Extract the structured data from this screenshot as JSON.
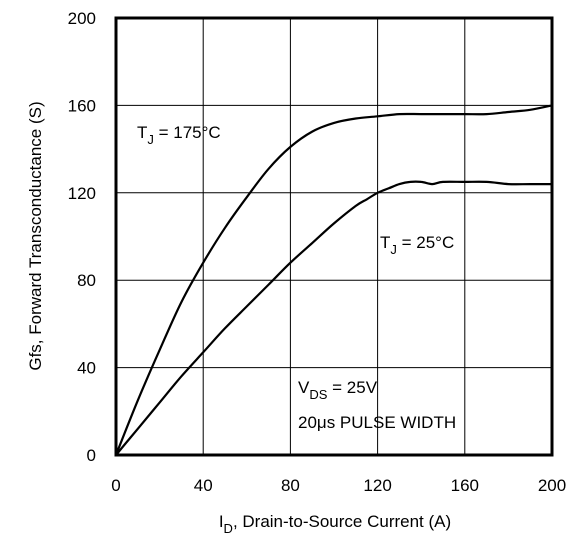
{
  "chart_data": {
    "type": "line",
    "xlabel": {
      "main": "I",
      "sub": "D",
      "rest": ", Drain-to-Source Current (A)"
    },
    "ylabel": "Gfs, Forward Transconductance (S)",
    "xlim": [
      0,
      200
    ],
    "ylim": [
      0,
      200
    ],
    "xticks": [
      "0",
      "40",
      "80",
      "120",
      "160",
      "200"
    ],
    "yticks": [
      "0",
      "40",
      "80",
      "120",
      "160",
      "200"
    ],
    "grid": true,
    "series": [
      {
        "label": {
          "main": "T",
          "sub": "J",
          "rest": " = 175°C"
        },
        "x": [
          0,
          10,
          20,
          30,
          40,
          50,
          60,
          70,
          80,
          90,
          100,
          110,
          120,
          130,
          140,
          150,
          160,
          170,
          180,
          190,
          200
        ],
        "y": [
          0,
          25,
          48,
          70,
          88,
          104,
          118,
          131,
          141,
          148,
          152,
          154,
          155,
          156,
          156,
          156,
          156,
          156,
          157,
          158,
          160
        ]
      },
      {
        "label": {
          "main": "T",
          "sub": "J",
          "rest": " = 25°C"
        },
        "x": [
          0,
          10,
          20,
          30,
          40,
          50,
          60,
          70,
          80,
          90,
          100,
          110,
          115,
          120,
          125,
          130,
          135,
          140,
          145,
          150,
          160,
          170,
          180,
          190,
          200
        ],
        "y": [
          0,
          12,
          24,
          36,
          47,
          58,
          68,
          78,
          88,
          97,
          106,
          114,
          117,
          120,
          122,
          124,
          125,
          125,
          124,
          125,
          125,
          125,
          124,
          124,
          124
        ]
      }
    ],
    "annotations": [
      {
        "main": "V",
        "sub": "DS",
        "rest": " = 25V"
      },
      {
        "main": "20μs PULSE WIDTH",
        "sub": "",
        "rest": ""
      }
    ]
  }
}
